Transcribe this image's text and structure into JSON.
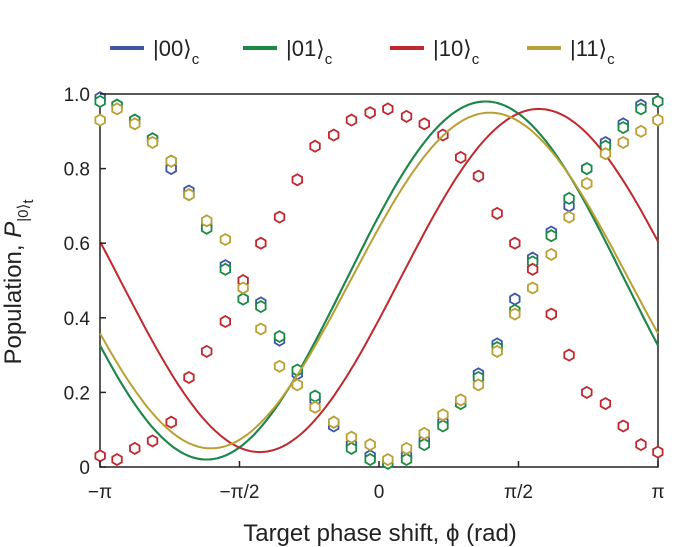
{
  "chart_data": {
    "type": "line",
    "xlabel": "Target phase shift, ϕ (rad)",
    "ylabel_main": "Population, ",
    "ylabel_italic": "P",
    "ylabel_sub": "|0⟩",
    "ylabel_subsub": "t",
    "xlim": [
      -3.14159,
      3.14159
    ],
    "ylim": [
      0,
      1.0
    ],
    "x_ticks": [
      {
        "value": -3.14159,
        "label": "−π"
      },
      {
        "value": -1.5708,
        "label": "−π/2"
      },
      {
        "value": 0,
        "label": "0"
      },
      {
        "value": 1.5708,
        "label": "π/2"
      },
      {
        "value": 3.14159,
        "label": "π"
      }
    ],
    "y_ticks": [
      {
        "value": 0,
        "label": "0"
      },
      {
        "value": 0.2,
        "label": "0.2"
      },
      {
        "value": 0.4,
        "label": "0.4"
      },
      {
        "value": 0.6,
        "label": "0.6"
      },
      {
        "value": 0.8,
        "label": "0.8"
      },
      {
        "value": 1.0,
        "label": "1.0"
      }
    ],
    "legend_position": "top",
    "series": [
      {
        "name": "|00⟩",
        "subscript": "c",
        "color": "#3f55a6",
        "fit": {
          "amp": 0.48,
          "offset": 0.5,
          "phase": -1.2
        },
        "points": [
          [
            -3.14,
            0.99
          ],
          [
            -2.95,
            0.97
          ],
          [
            -2.75,
            0.93
          ],
          [
            -2.55,
            0.88
          ],
          [
            -2.34,
            0.8
          ],
          [
            -2.14,
            0.74
          ],
          [
            -1.94,
            0.65
          ],
          [
            -1.73,
            0.54
          ],
          [
            -1.53,
            0.45
          ],
          [
            -1.33,
            0.44
          ],
          [
            -1.12,
            0.34
          ],
          [
            -0.92,
            0.25
          ],
          [
            -0.72,
            0.18
          ],
          [
            -0.51,
            0.11
          ],
          [
            -0.31,
            0.06
          ],
          [
            -0.1,
            0.03
          ],
          [
            0.1,
            0.01
          ],
          [
            0.31,
            0.03
          ],
          [
            0.51,
            0.07
          ],
          [
            0.72,
            0.12
          ],
          [
            0.92,
            0.18
          ],
          [
            1.12,
            0.25
          ],
          [
            1.33,
            0.33
          ],
          [
            1.53,
            0.45
          ],
          [
            1.73,
            0.56
          ],
          [
            1.94,
            0.63
          ],
          [
            2.14,
            0.7
          ],
          [
            2.34,
            0.8
          ],
          [
            2.55,
            0.87
          ],
          [
            2.75,
            0.92
          ],
          [
            2.95,
            0.97
          ],
          [
            3.14,
            0.98
          ]
        ]
      },
      {
        "name": "|01⟩",
        "subscript": "c",
        "color": "#1b8a45",
        "fit": {
          "amp": 0.48,
          "offset": 0.5,
          "phase": -1.2
        },
        "points": [
          [
            -3.14,
            0.98
          ],
          [
            -2.95,
            0.97
          ],
          [
            -2.75,
            0.93
          ],
          [
            -2.55,
            0.88
          ],
          [
            -2.34,
            0.82
          ],
          [
            -2.14,
            0.73
          ],
          [
            -1.94,
            0.64
          ],
          [
            -1.73,
            0.53
          ],
          [
            -1.53,
            0.45
          ],
          [
            -1.33,
            0.43
          ],
          [
            -1.12,
            0.35
          ],
          [
            -0.92,
            0.26
          ],
          [
            -0.72,
            0.19
          ],
          [
            -0.51,
            0.12
          ],
          [
            -0.31,
            0.05
          ],
          [
            -0.1,
            0.02
          ],
          [
            0.1,
            0.01
          ],
          [
            0.31,
            0.02
          ],
          [
            0.51,
            0.06
          ],
          [
            0.72,
            0.11
          ],
          [
            0.92,
            0.17
          ],
          [
            1.12,
            0.24
          ],
          [
            1.33,
            0.32
          ],
          [
            1.53,
            0.42
          ],
          [
            1.73,
            0.55
          ],
          [
            1.94,
            0.62
          ],
          [
            2.14,
            0.72
          ],
          [
            2.34,
            0.8
          ],
          [
            2.55,
            0.86
          ],
          [
            2.75,
            0.91
          ],
          [
            2.95,
            0.96
          ],
          [
            3.14,
            0.98
          ]
        ]
      },
      {
        "name": "|10⟩",
        "subscript": "c",
        "color": "#c0282e",
        "fit": {
          "amp": 0.46,
          "offset": 0.5,
          "phase": -1.8
        },
        "points": [
          [
            -3.14,
            0.03
          ],
          [
            -2.95,
            0.02
          ],
          [
            -2.75,
            0.05
          ],
          [
            -2.55,
            0.07
          ],
          [
            -2.34,
            0.12
          ],
          [
            -2.14,
            0.24
          ],
          [
            -1.94,
            0.31
          ],
          [
            -1.73,
            0.39
          ],
          [
            -1.53,
            0.5
          ],
          [
            -1.33,
            0.6
          ],
          [
            -1.12,
            0.67
          ],
          [
            -0.92,
            0.77
          ],
          [
            -0.72,
            0.86
          ],
          [
            -0.51,
            0.89
          ],
          [
            -0.31,
            0.93
          ],
          [
            -0.1,
            0.95
          ],
          [
            0.1,
            0.96
          ],
          [
            0.31,
            0.94
          ],
          [
            0.51,
            0.92
          ],
          [
            0.72,
            0.89
          ],
          [
            0.92,
            0.83
          ],
          [
            1.12,
            0.78
          ],
          [
            1.33,
            0.68
          ],
          [
            1.53,
            0.6
          ],
          [
            1.73,
            0.53
          ],
          [
            1.94,
            0.41
          ],
          [
            2.14,
            0.3
          ],
          [
            2.34,
            0.2
          ],
          [
            2.55,
            0.17
          ],
          [
            2.75,
            0.11
          ],
          [
            2.95,
            0.06
          ],
          [
            3.14,
            0.04
          ]
        ]
      },
      {
        "name": "|11⟩",
        "subscript": "c",
        "color": "#b9a032",
        "fit": {
          "amp": 0.45,
          "offset": 0.5,
          "phase": -1.25
        },
        "points": [
          [
            -3.14,
            0.93
          ],
          [
            -2.95,
            0.96
          ],
          [
            -2.75,
            0.92
          ],
          [
            -2.55,
            0.87
          ],
          [
            -2.34,
            0.82
          ],
          [
            -2.14,
            0.73
          ],
          [
            -1.94,
            0.66
          ],
          [
            -1.73,
            0.61
          ],
          [
            -1.53,
            0.48
          ],
          [
            -1.33,
            0.37
          ],
          [
            -1.12,
            0.27
          ],
          [
            -0.92,
            0.22
          ],
          [
            -0.72,
            0.16
          ],
          [
            -0.51,
            0.12
          ],
          [
            -0.31,
            0.08
          ],
          [
            -0.1,
            0.06
          ],
          [
            0.1,
            0.02
          ],
          [
            0.31,
            0.05
          ],
          [
            0.51,
            0.09
          ],
          [
            0.72,
            0.14
          ],
          [
            0.92,
            0.18
          ],
          [
            1.12,
            0.22
          ],
          [
            1.33,
            0.31
          ],
          [
            1.53,
            0.41
          ],
          [
            1.73,
            0.48
          ],
          [
            1.94,
            0.57
          ],
          [
            2.14,
            0.67
          ],
          [
            2.34,
            0.76
          ],
          [
            2.55,
            0.84
          ],
          [
            2.75,
            0.87
          ],
          [
            2.95,
            0.9
          ],
          [
            3.14,
            0.93
          ]
        ]
      }
    ]
  }
}
